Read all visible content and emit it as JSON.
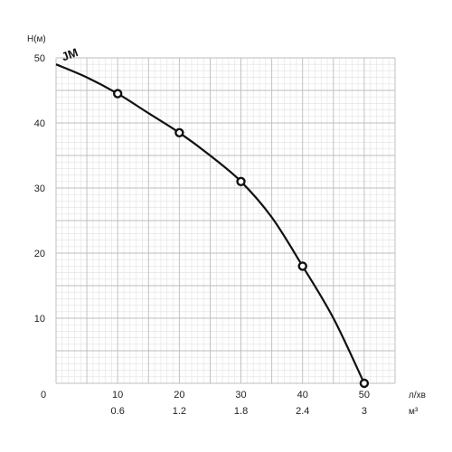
{
  "chart_data": {
    "type": "line",
    "title": "",
    "ylabel": "H(м)",
    "xlabel": "л/хв",
    "x2label": "м³",
    "origin_label": "0",
    "xlim": [
      0,
      55
    ],
    "ylim": [
      0,
      50
    ],
    "grid": true,
    "x_ticks": [
      10,
      20,
      30,
      40,
      50
    ],
    "x_tick_labels": [
      "10",
      "20",
      "30",
      "40",
      "50"
    ],
    "x2_tick_labels": [
      "0.6",
      "1.2",
      "1.8",
      "2.4",
      "3"
    ],
    "y_ticks": [
      10,
      20,
      30,
      40,
      50
    ],
    "y_tick_labels": [
      "10",
      "20",
      "30",
      "40",
      "50"
    ],
    "series": [
      {
        "name": "JM",
        "color": "#111111",
        "curve_x": [
          0,
          5,
          10,
          15,
          20,
          25,
          30,
          35,
          40,
          45,
          50
        ],
        "curve_y": [
          49,
          47,
          44.5,
          41.5,
          38.5,
          35,
          31,
          25.5,
          18,
          10,
          0
        ],
        "marker_x": [
          10,
          20,
          30,
          40,
          50
        ],
        "marker_y": [
          44.5,
          38.5,
          31,
          18,
          0
        ]
      }
    ]
  }
}
